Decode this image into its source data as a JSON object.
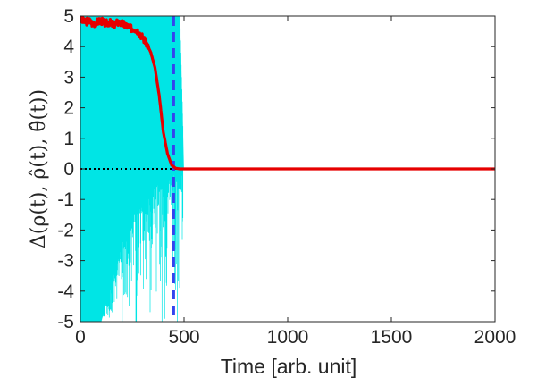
{
  "chart_data": {
    "type": "line",
    "title": "",
    "xlabel": "Time [arb. unit]",
    "ylabel": "Δ(ρ(t), ρ̂(t), θ̂(t))",
    "xlim": [
      0,
      2000
    ],
    "ylim": [
      -5,
      5
    ],
    "xticks": [
      0,
      500,
      1000,
      1500,
      2000
    ],
    "yticks": [
      -5,
      -4,
      -3,
      -2,
      -1,
      0,
      1,
      2,
      3,
      4,
      5
    ],
    "xtick_labels": [
      "0",
      "500",
      "1000",
      "1500",
      "2000"
    ],
    "ytick_labels": [
      "-5",
      "-4",
      "-3",
      "-2",
      "-1",
      "0",
      "1",
      "2",
      "3",
      "4",
      "5"
    ],
    "grid": false,
    "legend": "none",
    "series": [
      {
        "role": "fluctuating trace",
        "color": "#00e5e5",
        "x": [
          0,
          20,
          40,
          60,
          80,
          100,
          120,
          140,
          160,
          180,
          200,
          220,
          240,
          260,
          280,
          300,
          320,
          340,
          360,
          380,
          400,
          420,
          440,
          460,
          480,
          500
        ],
        "y_upper": [
          5,
          5,
          5,
          5,
          5,
          5,
          5,
          5,
          5,
          5,
          5,
          5,
          5,
          5,
          5,
          5,
          5,
          5,
          5,
          5,
          5,
          5,
          5,
          5,
          5,
          0
        ],
        "y_lower": [
          -5,
          -5,
          -5,
          -5,
          -5,
          -5,
          -4.5,
          -4,
          -3.5,
          -3,
          -2.5,
          -2,
          -1.8,
          -1.5,
          -1.3,
          -1.2,
          -1,
          -0.8,
          -0.6,
          -0.5,
          -0.4,
          -0.3,
          -0.2,
          -0.1,
          0,
          0
        ]
      },
      {
        "role": "main trace",
        "color": "#e60000",
        "x": [
          0,
          20,
          40,
          60,
          80,
          100,
          120,
          140,
          160,
          180,
          200,
          220,
          240,
          260,
          280,
          300,
          320,
          340,
          360,
          380,
          400,
          420,
          440,
          460,
          480,
          500,
          1000,
          1500,
          2000
        ],
        "y": [
          4.9,
          4.8,
          4.85,
          4.75,
          4.8,
          4.85,
          4.75,
          4.8,
          4.7,
          4.8,
          4.75,
          4.7,
          4.6,
          4.6,
          4.5,
          4.3,
          4.1,
          3.8,
          3.3,
          2.4,
          1.2,
          0.5,
          0.12,
          0.02,
          0,
          0,
          0,
          0,
          0
        ]
      }
    ],
    "reference_lines": [
      {
        "orientation": "horizontal",
        "value": 0,
        "style": "dotted",
        "color": "#000000"
      },
      {
        "orientation": "vertical",
        "value": 450,
        "style": "dashed",
        "color": "#3344ee"
      }
    ]
  }
}
